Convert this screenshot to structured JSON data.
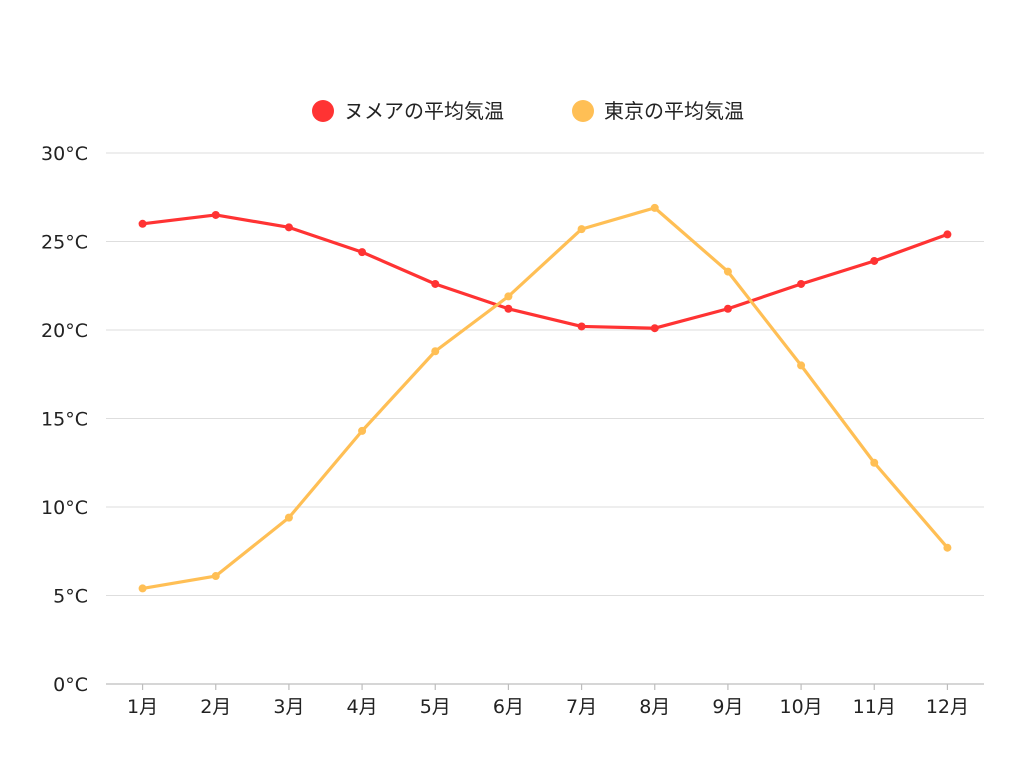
{
  "chart_data": {
    "type": "line",
    "categories": [
      "1月",
      "2月",
      "3月",
      "4月",
      "5月",
      "6月",
      "7月",
      "8月",
      "9月",
      "10月",
      "11月",
      "12月"
    ],
    "series": [
      {
        "name": "ヌメアの平均気温",
        "color": "#ff3333",
        "values": [
          26.0,
          26.5,
          25.8,
          24.4,
          22.6,
          21.2,
          20.2,
          20.1,
          21.2,
          22.6,
          23.9,
          25.4
        ]
      },
      {
        "name": "東京の平均気温",
        "color": "#ffbf55",
        "values": [
          5.4,
          6.1,
          9.4,
          14.3,
          18.8,
          21.9,
          25.7,
          26.9,
          23.3,
          18.0,
          12.5,
          7.7
        ]
      }
    ],
    "y_ticks": [
      "0°C",
      "5°C",
      "10°C",
      "15°C",
      "20°C",
      "25°C",
      "30°C"
    ],
    "ylim": [
      0,
      30
    ],
    "grid": true,
    "legend_position": "top-center"
  }
}
